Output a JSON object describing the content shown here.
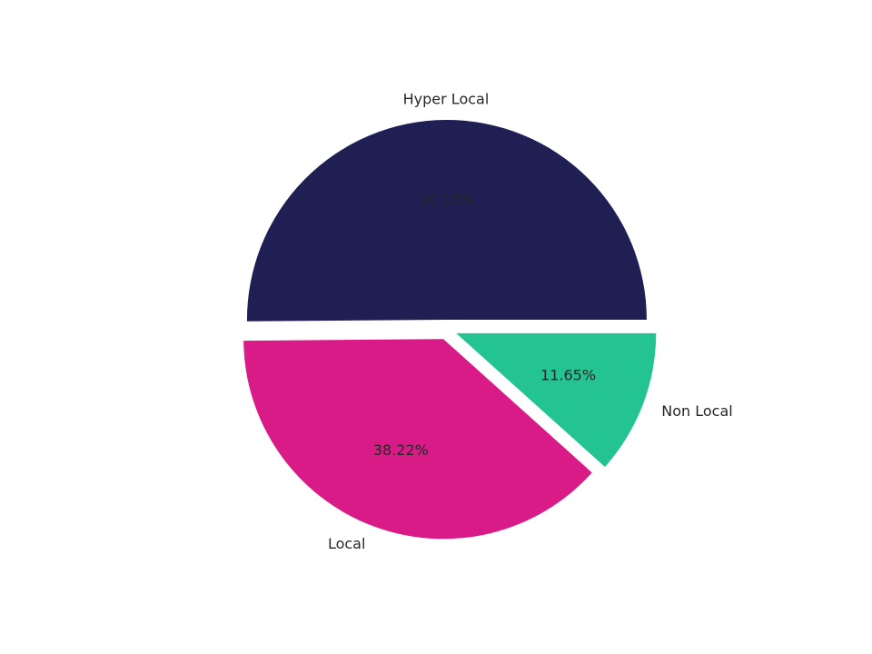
{
  "chart_data": {
    "type": "pie",
    "categories": [
      "Hyper Local",
      "Local",
      "Non Local"
    ],
    "values": [
      50.13,
      38.22,
      11.65
    ],
    "value_labels": [
      "50.13%",
      "38.22%",
      "11.65%"
    ],
    "colors": [
      "#1f1f54",
      "#d81b87",
      "#23c491"
    ],
    "explode": [
      0.05,
      0.05,
      0.05
    ]
  }
}
